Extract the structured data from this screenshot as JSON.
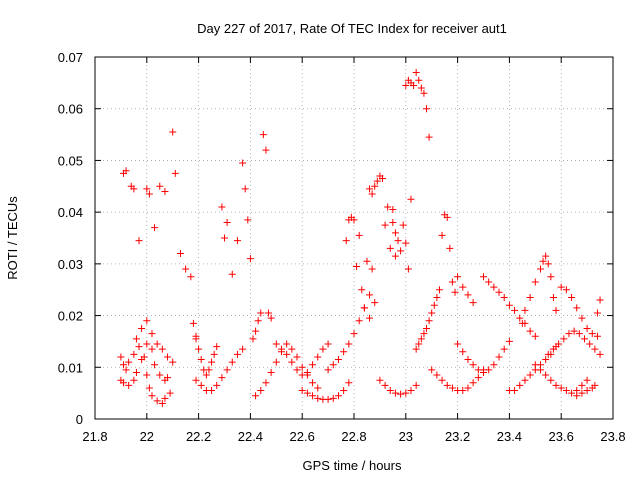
{
  "chart_data": {
    "type": "scatter",
    "title": "Day 227 of 2017, Rate Of TEC Index for receiver aut1",
    "xlabel": "GPS time / hours",
    "ylabel": "ROTI / TECUs",
    "xlim": [
      21.8,
      23.8
    ],
    "ylim": [
      0,
      0.07
    ],
    "x_ticks": [
      "21.8",
      "22",
      "22.2",
      "22.4",
      "22.6",
      "22.8",
      "23",
      "23.2",
      "23.4",
      "23.6",
      "23.8"
    ],
    "y_ticks": [
      "0",
      "0.01",
      "0.02",
      "0.03",
      "0.04",
      "0.05",
      "0.06",
      "0.07"
    ],
    "grid": true,
    "marker": "+",
    "colors": {
      "marker": "#ff0000",
      "grid": "#a0a0a0",
      "axis": "#000000"
    },
    "series": [
      {
        "x": [
          21.9,
          21.91,
          21.92,
          21.93,
          21.95,
          21.97,
          21.99,
          22.0,
          22.01,
          22.02,
          22.04,
          22.06,
          22.07,
          22.09,
          21.9,
          21.91,
          21.93,
          21.95,
          21.96,
          21.98,
          22.0,
          22.02,
          22.03,
          22.05,
          22.07,
          22.08,
          21.96,
          21.98,
          22.0,
          22.02,
          22.04,
          22.06,
          22.08,
          22.1,
          21.91,
          21.92,
          21.94,
          21.95,
          21.97,
          22.0,
          22.01,
          22.03,
          22.05,
          22.07,
          22.1,
          22.11,
          22.13,
          22.15,
          22.17,
          22.19,
          22.18,
          22.19,
          22.2,
          22.21,
          22.22,
          22.23,
          22.24,
          22.25,
          22.26,
          22.27,
          22.19,
          22.21,
          22.23,
          22.25,
          22.27,
          22.29,
          22.31,
          22.33,
          22.35,
          22.37,
          22.29,
          22.3,
          22.31,
          22.33,
          22.35,
          22.37,
          22.38,
          22.39,
          22.4,
          22.41,
          22.42,
          22.43,
          22.44,
          22.45,
          22.46,
          22.47,
          22.48,
          22.42,
          22.44,
          22.46,
          22.48,
          22.5,
          22.52,
          22.54,
          22.56,
          22.58,
          22.6,
          22.62,
          22.64,
          22.66,
          22.5,
          22.52,
          22.54,
          22.56,
          22.58,
          22.6,
          22.62,
          22.64,
          22.66,
          22.68,
          22.7,
          22.6,
          22.62,
          22.64,
          22.66,
          22.68,
          22.7,
          22.72,
          22.74,
          22.76,
          22.78,
          22.7,
          22.72,
          22.74,
          22.76,
          22.78,
          22.8,
          22.82,
          22.84,
          22.86,
          22.77,
          22.78,
          22.79,
          22.8,
          22.81,
          22.82,
          22.83,
          22.84,
          22.85,
          22.86,
          22.87,
          22.88,
          22.86,
          22.87,
          22.88,
          22.89,
          22.9,
          22.91,
          22.92,
          22.93,
          22.94,
          22.95,
          22.96,
          22.9,
          22.92,
          22.94,
          22.96,
          22.98,
          23.0,
          23.02,
          23.04,
          22.95,
          22.96,
          22.97,
          22.98,
          22.99,
          23.0,
          23.01,
          23.02,
          23.0,
          23.01,
          23.02,
          23.03,
          23.04,
          23.05,
          23.06,
          23.07,
          23.08,
          23.09,
          23.04,
          23.05,
          23.06,
          23.07,
          23.08,
          23.09,
          23.1,
          23.11,
          23.12,
          23.13,
          23.1,
          23.12,
          23.14,
          23.16,
          23.18,
          23.2,
          23.22,
          23.24,
          23.26,
          23.28,
          23.3,
          23.14,
          23.15,
          23.16,
          23.17,
          23.18,
          23.19,
          23.2,
          23.22,
          23.24,
          23.26,
          23.2,
          23.22,
          23.24,
          23.26,
          23.28,
          23.3,
          23.32,
          23.34,
          23.36,
          23.38,
          23.4,
          23.3,
          23.32,
          23.34,
          23.36,
          23.38,
          23.4,
          23.42,
          23.44,
          23.46,
          23.48,
          23.5,
          23.4,
          23.42,
          23.44,
          23.46,
          23.48,
          23.5,
          23.52,
          23.54,
          23.56,
          23.58,
          23.45,
          23.46,
          23.48,
          23.5,
          23.52,
          23.53,
          23.54,
          23.55,
          23.56,
          23.57,
          23.58,
          23.5,
          23.52,
          23.54,
          23.56,
          23.58,
          23.6,
          23.62,
          23.64,
          23.66,
          23.68,
          23.7,
          23.55,
          23.57,
          23.59,
          23.61,
          23.63,
          23.65,
          23.67,
          23.69,
          23.71,
          23.73,
          23.75,
          23.6,
          23.62,
          23.64,
          23.66,
          23.68,
          23.7,
          23.72,
          23.74,
          23.66,
          23.68,
          23.7,
          23.72,
          23.73,
          23.74,
          23.75
        ],
        "y": [
          0.012,
          0.0105,
          0.0095,
          0.011,
          0.0125,
          0.014,
          0.012,
          0.0085,
          0.006,
          0.0045,
          0.0035,
          0.003,
          0.004,
          0.005,
          0.0075,
          0.007,
          0.0065,
          0.0075,
          0.009,
          0.0115,
          0.0145,
          0.0135,
          0.0105,
          0.0085,
          0.0075,
          0.008,
          0.0155,
          0.0175,
          0.019,
          0.0165,
          0.0145,
          0.0135,
          0.012,
          0.011,
          0.0475,
          0.048,
          0.045,
          0.0445,
          0.0345,
          0.0445,
          0.0435,
          0.037,
          0.045,
          0.044,
          0.0555,
          0.0475,
          0.032,
          0.029,
          0.0275,
          0.0155,
          0.0185,
          0.016,
          0.0135,
          0.0115,
          0.0095,
          0.0085,
          0.0095,
          0.011,
          0.0125,
          0.014,
          0.0075,
          0.0065,
          0.0055,
          0.0055,
          0.0065,
          0.008,
          0.0095,
          0.011,
          0.0125,
          0.0135,
          0.041,
          0.035,
          0.038,
          0.028,
          0.0345,
          0.0495,
          0.0445,
          0.0385,
          0.031,
          0.0155,
          0.017,
          0.019,
          0.0205,
          0.055,
          0.052,
          0.0205,
          0.0195,
          0.0045,
          0.0055,
          0.007,
          0.009,
          0.011,
          0.013,
          0.0145,
          0.0135,
          0.012,
          0.01,
          0.0085,
          0.007,
          0.006,
          0.0145,
          0.0135,
          0.0125,
          0.011,
          0.0095,
          0.0085,
          0.009,
          0.0105,
          0.012,
          0.0135,
          0.0145,
          0.0055,
          0.005,
          0.0045,
          0.004,
          0.0038,
          0.0038,
          0.004,
          0.0045,
          0.0055,
          0.007,
          0.0095,
          0.0105,
          0.0115,
          0.013,
          0.0145,
          0.0165,
          0.019,
          0.0215,
          0.024,
          0.0345,
          0.0385,
          0.039,
          0.0385,
          0.0295,
          0.0355,
          0.025,
          0.0215,
          0.0305,
          0.0195,
          0.029,
          0.0225,
          0.0445,
          0.0435,
          0.045,
          0.046,
          0.047,
          0.0465,
          0.0375,
          0.041,
          0.033,
          0.038,
          0.0315,
          0.0075,
          0.0065,
          0.0055,
          0.005,
          0.0048,
          0.005,
          0.0055,
          0.0065,
          0.0405,
          0.036,
          0.0345,
          0.0325,
          0.0375,
          0.034,
          0.029,
          0.0425,
          0.0645,
          0.0655,
          0.065,
          0.0645,
          0.067,
          0.0655,
          0.064,
          0.063,
          0.06,
          0.0545,
          0.0135,
          0.0145,
          0.0155,
          0.0165,
          0.0175,
          0.019,
          0.0205,
          0.022,
          0.0235,
          0.025,
          0.0095,
          0.0085,
          0.0075,
          0.0065,
          0.006,
          0.0055,
          0.0055,
          0.006,
          0.007,
          0.008,
          0.0095,
          0.0355,
          0.0395,
          0.039,
          0.033,
          0.0265,
          0.0245,
          0.0275,
          0.0255,
          0.024,
          0.0225,
          0.0145,
          0.013,
          0.0115,
          0.0105,
          0.0095,
          0.009,
          0.0095,
          0.0105,
          0.012,
          0.0135,
          0.015,
          0.0275,
          0.0265,
          0.0255,
          0.0245,
          0.0235,
          0.022,
          0.021,
          0.0195,
          0.0185,
          0.017,
          0.016,
          0.0055,
          0.0055,
          0.0065,
          0.0075,
          0.0085,
          0.0095,
          0.0105,
          0.0115,
          0.0125,
          0.014,
          0.0185,
          0.021,
          0.0235,
          0.0265,
          0.029,
          0.0305,
          0.0315,
          0.03,
          0.0275,
          0.0235,
          0.021,
          0.0105,
          0.0095,
          0.0085,
          0.0075,
          0.0065,
          0.006,
          0.0055,
          0.005,
          0.0055,
          0.0065,
          0.0075,
          0.0125,
          0.0135,
          0.0145,
          0.0155,
          0.0165,
          0.017,
          0.0165,
          0.0155,
          0.0145,
          0.0135,
          0.0125,
          0.0255,
          0.025,
          0.0235,
          0.0215,
          0.0195,
          0.0175,
          0.0165,
          0.016,
          0.0045,
          0.005,
          0.0055,
          0.006,
          0.0065,
          0.0205,
          0.023
        ]
      }
    ]
  }
}
